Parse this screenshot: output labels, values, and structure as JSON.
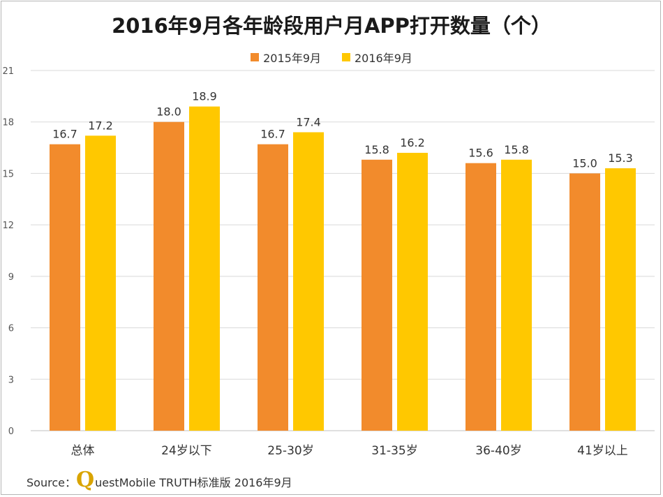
{
  "title": "2016年9月各年龄段用户月APP打开数量（个）",
  "source": {
    "label": "Source：",
    "logo_letter": "Q",
    "text": "uestMobile TRUTH标准版 2016年9月"
  },
  "colors": {
    "s2015": "#f28b2c",
    "s2016": "#ffc800",
    "grid": "#d9d9d9"
  },
  "chart_data": {
    "type": "bar",
    "categories": [
      "总体",
      "24岁以下",
      "25-30岁",
      "31-35岁",
      "36-40岁",
      "41岁以上"
    ],
    "series": [
      {
        "name": "2015年9月",
        "values": [
          16.7,
          18.0,
          16.7,
          15.8,
          15.6,
          15.0
        ]
      },
      {
        "name": "2016年9月",
        "values": [
          17.2,
          18.9,
          17.4,
          16.2,
          15.8,
          15.3
        ]
      }
    ],
    "ylim": [
      0,
      21
    ],
    "yticks": [
      0,
      3,
      6,
      9,
      12,
      15,
      18,
      21
    ],
    "grid": true,
    "legend": "top-center"
  }
}
